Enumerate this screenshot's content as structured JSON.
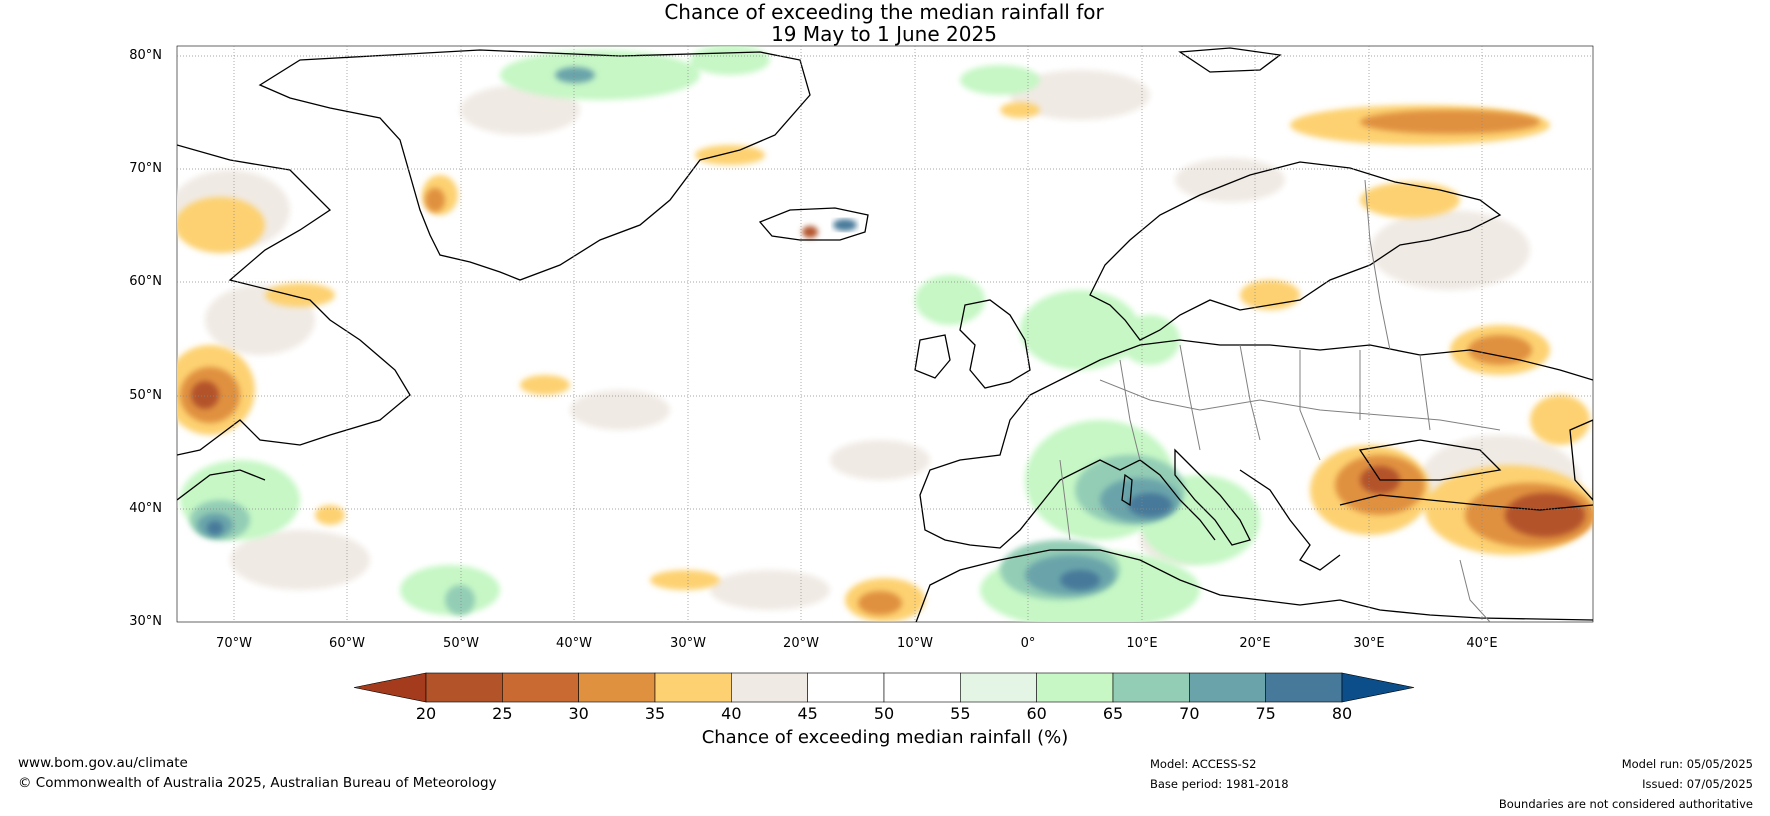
{
  "title": {
    "line1": "Chance of exceeding the median rainfall for",
    "line2": "19 May to 1 June 2025"
  },
  "map": {
    "lat_labels": [
      "80°N",
      "70°N",
      "60°N",
      "50°N",
      "40°N",
      "30°N"
    ],
    "lon_labels": [
      "70°W",
      "60°W",
      "50°W",
      "40°W",
      "30°W",
      "20°W",
      "10°W",
      "0°",
      "10°E",
      "20°E",
      "30°E",
      "40°E"
    ],
    "regions": [
      {
        "name": "greenland-interior",
        "band": "45-50"
      },
      {
        "name": "iceland-wet",
        "band": "75-80"
      },
      {
        "name": "iceland-dry",
        "band": "25-30"
      },
      {
        "name": "mediterranean-wet",
        "band": "70-75"
      },
      {
        "name": "north-africa-wet",
        "band": "70-75"
      },
      {
        "name": "turkey-dry",
        "band": "25-30"
      },
      {
        "name": "russia-dry",
        "band": "30-35"
      },
      {
        "name": "barents-dry",
        "band": "30-35"
      },
      {
        "name": "canada-dry",
        "band": "30-35"
      },
      {
        "name": "us-east-wet",
        "band": "70-75"
      }
    ]
  },
  "colorbar": {
    "ticks": [
      "20",
      "25",
      "30",
      "35",
      "40",
      "45",
      "50",
      "55",
      "60",
      "65",
      "70",
      "75",
      "80"
    ],
    "colors": [
      "#a33b1c",
      "#b3532a",
      "#c96a33",
      "#e0913f",
      "#fdd171",
      "#f0eae4",
      "#ffffff",
      "#ffffff",
      "#e5f5e5",
      "#c6f7c5",
      "#93cdb5",
      "#6aa4aa",
      "#46799a",
      "#1a4f8a",
      "#0b4e8a"
    ],
    "label": "Chance of exceeding median rainfall (%)"
  },
  "footer": {
    "website": "www.bom.gov.au/climate",
    "copyright": "© Commonwealth of Australia 2025, Australian Bureau of Meteorology",
    "model": "Model: ACCESS-S2",
    "base_period": "Base period: 1981-2018",
    "model_run": "Model run: 05/05/2025",
    "issued": "Issued: 07/05/2025",
    "disclaimer": "Boundaries are not considered authoritative"
  }
}
